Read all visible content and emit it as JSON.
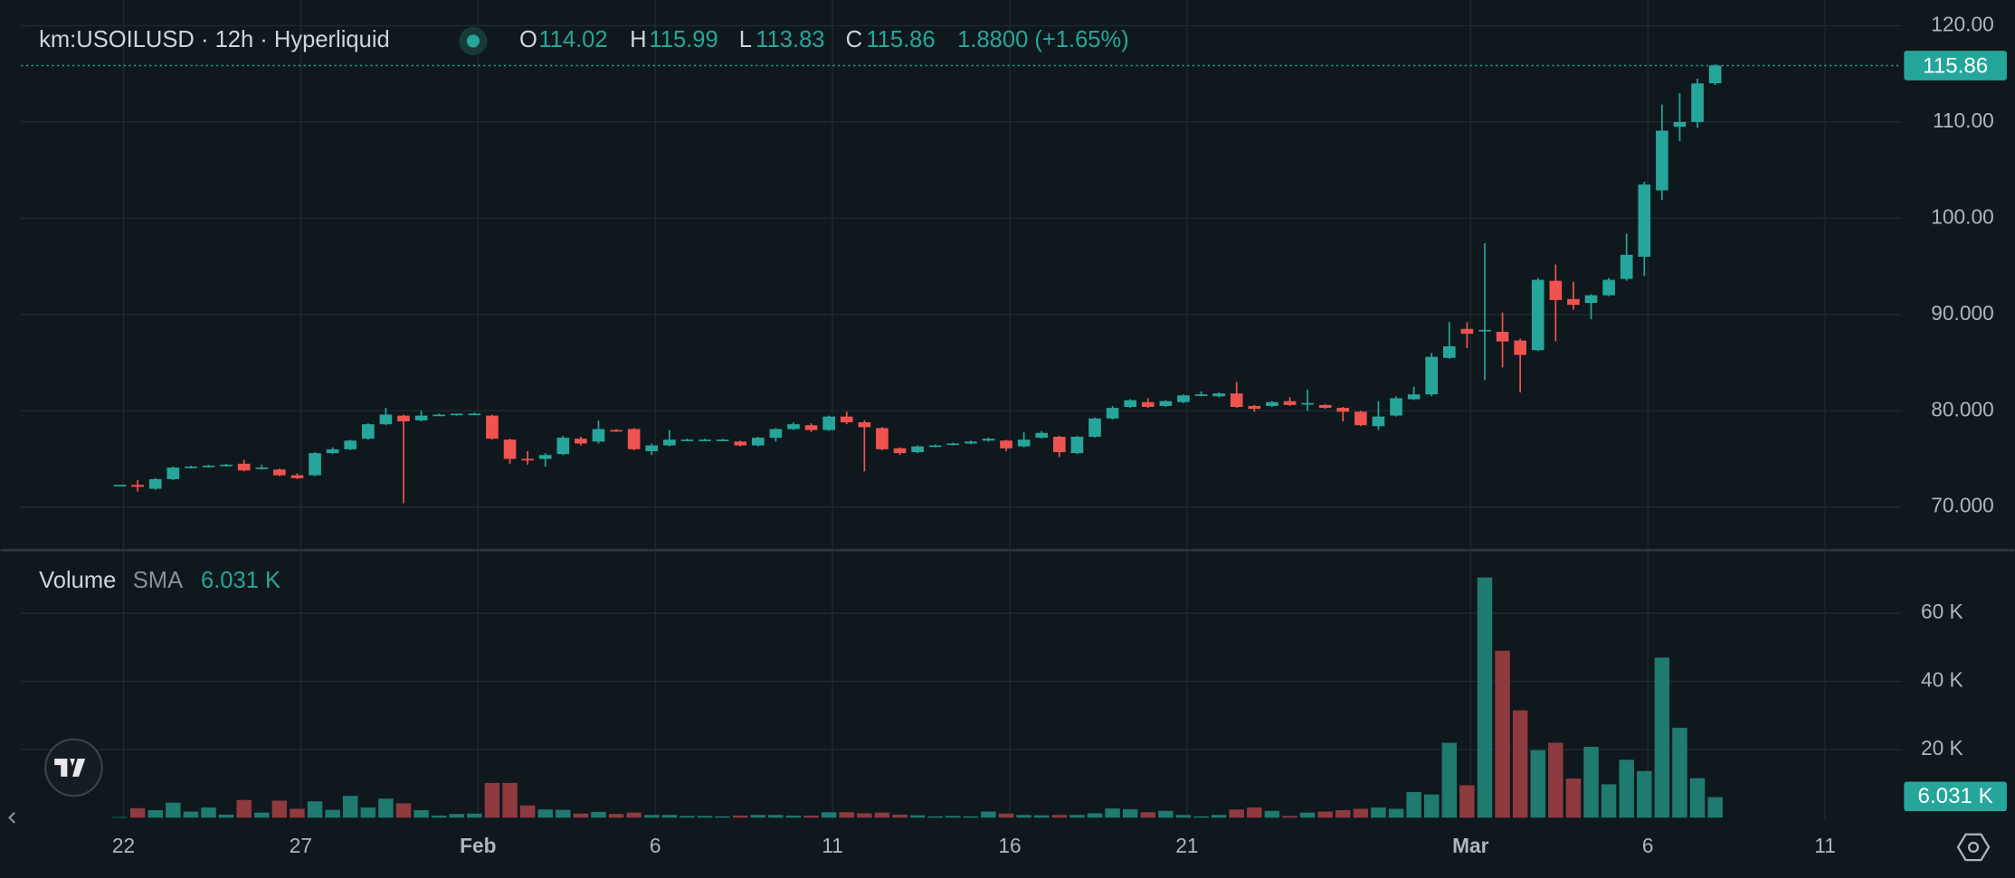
{
  "chart_data": [
    {
      "type": "candlestick",
      "title": "km:USOILUSD · 12h · Hyperliquid",
      "ohlc_labels": [
        "O",
        "H",
        "L",
        "C"
      ],
      "change": "1.8800 (+1.65%)",
      "up_color": "#26a69a",
      "down_color": "#ef5350",
      "grid": true,
      "open": [
        72.2,
        72.3,
        71.9,
        72.9,
        74.1,
        74.2,
        74.3,
        74.5,
        74.0,
        73.9,
        73.3,
        73.3,
        75.6,
        76.0,
        77.1,
        78.6,
        79.5,
        79.0,
        79.6,
        79.6,
        79.7,
        79.5,
        77.0,
        75.0,
        75.0,
        75.5,
        77.1,
        76.8,
        78.0,
        78.1,
        75.8,
        76.4,
        77.0,
        77.0,
        77.0,
        76.8,
        76.4,
        77.2,
        78.1,
        78.5,
        78.0,
        79.4,
        78.8,
        78.2,
        76.1,
        75.7,
        76.3,
        76.5,
        76.6,
        76.9,
        76.9,
        76.3,
        77.2,
        77.3,
        75.6,
        77.3,
        79.2,
        80.4,
        80.9,
        80.5,
        80.9,
        81.6,
        81.5,
        81.8,
        80.5,
        80.5,
        81.0,
        80.8,
        80.6,
        80.3,
        79.9,
        78.4,
        79.5,
        81.2,
        81.7,
        85.5,
        88.5,
        88.4,
        88.2,
        87.3,
        86.3,
        93.5,
        91.6,
        91.2,
        92.0,
        93.7,
        96.0,
        102.9,
        109.5,
        110.0,
        114.02
      ],
      "high": [
        72.3,
        72.8,
        73.0,
        74.2,
        74.3,
        74.4,
        74.5,
        74.9,
        74.4,
        74.0,
        73.5,
        75.7,
        76.2,
        77.0,
        78.7,
        80.3,
        79.6,
        80.0,
        79.7,
        79.7,
        79.8,
        79.6,
        77.1,
        75.8,
        75.6,
        77.4,
        77.3,
        79.0,
        78.1,
        78.2,
        76.6,
        78.0,
        77.1,
        77.1,
        77.1,
        76.9,
        77.3,
        78.2,
        78.8,
        78.7,
        79.5,
        79.9,
        79.0,
        78.3,
        76.2,
        76.4,
        76.5,
        76.7,
        76.9,
        77.2,
        77.0,
        77.8,
        77.9,
        77.4,
        77.4,
        79.3,
        80.5,
        81.2,
        81.3,
        81.1,
        81.7,
        82.0,
        81.9,
        83.0,
        80.6,
        81.0,
        81.4,
        82.2,
        80.7,
        80.4,
        80.0,
        81.0,
        81.5,
        82.5,
        86.0,
        89.2,
        89.2,
        97.4,
        90.2,
        87.5,
        93.8,
        95.2,
        93.4,
        92.1,
        93.8,
        98.4,
        103.8,
        111.8,
        113.0,
        114.5,
        115.99
      ],
      "low": [
        72.2,
        71.6,
        71.8,
        72.8,
        74.0,
        74.1,
        74.2,
        73.7,
        73.9,
        73.2,
        72.9,
        73.2,
        75.5,
        75.9,
        77.0,
        78.5,
        70.4,
        78.9,
        79.5,
        79.5,
        79.6,
        77.0,
        74.5,
        74.4,
        74.2,
        75.4,
        76.4,
        76.6,
        77.8,
        75.9,
        75.4,
        76.3,
        76.9,
        76.9,
        76.9,
        76.3,
        76.3,
        76.8,
        78.0,
        77.8,
        77.9,
        78.6,
        73.7,
        75.9,
        75.4,
        75.6,
        76.2,
        76.4,
        76.5,
        76.8,
        75.8,
        76.2,
        77.1,
        75.2,
        75.5,
        77.2,
        79.1,
        80.3,
        80.3,
        80.4,
        80.8,
        81.5,
        81.4,
        80.3,
        79.9,
        80.4,
        80.5,
        80.0,
        80.2,
        78.9,
        78.4,
        78.0,
        79.4,
        81.1,
        81.5,
        85.4,
        86.5,
        83.2,
        84.5,
        81.9,
        86.2,
        87.2,
        90.5,
        89.5,
        91.9,
        93.5,
        94.0,
        101.9,
        108.0,
        109.4,
        113.83
      ],
      "close": [
        72.3,
        72.1,
        72.9,
        74.1,
        74.2,
        74.3,
        74.4,
        73.8,
        74.1,
        73.3,
        73.0,
        75.6,
        76.0,
        76.9,
        78.6,
        79.6,
        78.9,
        79.5,
        79.6,
        79.7,
        79.7,
        77.1,
        75.0,
        74.9,
        75.4,
        77.2,
        76.6,
        78.1,
        77.9,
        76.0,
        76.4,
        77.0,
        77.0,
        77.0,
        77.0,
        76.4,
        77.2,
        78.1,
        78.6,
        78.0,
        79.4,
        78.8,
        78.3,
        76.0,
        75.6,
        76.3,
        76.4,
        76.6,
        76.8,
        77.1,
        76.1,
        77.0,
        77.7,
        75.7,
        77.3,
        79.2,
        80.3,
        81.1,
        80.4,
        81.0,
        81.6,
        81.7,
        81.8,
        80.4,
        80.2,
        80.9,
        80.6,
        80.8,
        80.3,
        79.9,
        78.5,
        79.4,
        81.3,
        81.7,
        85.6,
        86.7,
        88.0,
        88.4,
        87.2,
        85.8,
        93.6,
        91.5,
        91.0,
        92.0,
        93.6,
        96.2,
        103.5,
        109.1,
        110.0,
        114.0,
        115.86
      ],
      "xlim": [
        -5.58,
        100.51
      ],
      "xticks": [
        {
          "value": 0.2,
          "label": "22"
        },
        {
          "value": 10.2,
          "label": "27"
        },
        {
          "value": 20.2,
          "label": "Feb"
        },
        {
          "value": 30.2,
          "label": "6"
        },
        {
          "value": 40.2,
          "label": "11"
        },
        {
          "value": 50.2,
          "label": "16"
        },
        {
          "value": 60.2,
          "label": "21"
        },
        {
          "value": 76.2,
          "label": "Mar"
        },
        {
          "value": 86.2,
          "label": "6"
        },
        {
          "value": 96.2,
          "label": "11"
        }
      ],
      "ylim": [
        65.6,
        122.67
      ],
      "yticks": [
        {
          "value": 70,
          "label": "70.000"
        },
        {
          "value": 80,
          "label": "80.000"
        },
        {
          "value": 90,
          "label": "90.000"
        },
        {
          "value": 100,
          "label": "100.00"
        },
        {
          "value": 110,
          "label": "110.00"
        },
        {
          "value": 120,
          "label": "120.00"
        }
      ]
    },
    {
      "type": "bar",
      "title": "Volume",
      "indicator": "SMA",
      "up_color": "#1f7a6f",
      "down_color": "#8e3a3f",
      "grid": true,
      "values": [
        200,
        2800,
        2200,
        4400,
        1800,
        3000,
        900,
        5200,
        1500,
        5000,
        2600,
        4800,
        2300,
        6400,
        3000,
        5600,
        4200,
        2200,
        600,
        1100,
        1200,
        10200,
        10200,
        3600,
        2400,
        2300,
        1200,
        1700,
        1100,
        1500,
        800,
        800,
        500,
        500,
        400,
        600,
        800,
        800,
        600,
        600,
        1600,
        1600,
        1300,
        1500,
        900,
        700,
        400,
        500,
        400,
        1800,
        1200,
        800,
        700,
        800,
        800,
        1300,
        2700,
        2500,
        1600,
        2000,
        800,
        400,
        800,
        2400,
        3000,
        2000,
        500,
        1500,
        1800,
        2200,
        2600,
        3000,
        2600,
        7500,
        6800,
        22000,
        9500,
        70500,
        49000,
        31500,
        19800,
        22000,
        11500,
        20800,
        9800,
        17000,
        13700,
        47000,
        26400,
        11600,
        6031
      ],
      "value_labels": [
        null,
        null,
        null,
        null,
        null,
        null,
        null,
        null,
        null,
        null,
        null,
        null,
        null,
        null,
        null,
        null,
        null,
        null,
        null,
        null,
        null,
        null,
        null,
        null,
        null,
        null,
        null,
        null,
        null,
        null,
        null,
        null,
        null,
        null,
        null,
        null,
        null,
        null,
        null,
        null,
        null,
        null,
        null,
        null,
        null,
        null,
        null,
        null,
        null,
        null,
        null,
        null,
        null,
        null,
        null,
        null,
        null,
        null,
        null,
        null,
        null,
        null,
        null,
        null,
        null,
        null,
        null,
        null,
        null,
        null,
        null,
        null,
        null,
        null,
        null,
        null,
        null,
        null,
        null,
        null,
        null,
        null,
        null,
        null,
        null,
        null,
        null,
        null,
        null,
        null,
        "6.031 K"
      ],
      "ylim": [
        0,
        78000
      ],
      "yticks": [
        {
          "value": 20000,
          "label": "20 K"
        },
        {
          "value": 40000,
          "label": "40 K"
        },
        {
          "value": 60000,
          "label": "60 K"
        }
      ]
    }
  ]
}
